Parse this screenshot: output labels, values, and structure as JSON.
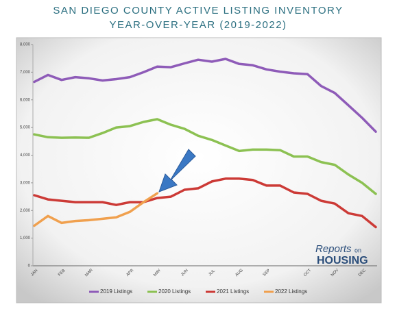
{
  "chart_data": {
    "type": "line",
    "title": "SAN DIEGO COUNTY ACTIVE LISTING INVENTORY",
    "subtitle": "YEAR-OVER-YEAR (2019-2022)",
    "categories": [
      "JAN",
      null,
      "FEB",
      null,
      "MAR",
      null,
      null,
      "APR",
      null,
      "MAY",
      null,
      "JUN",
      null,
      "JUL",
      null,
      "AUG",
      null,
      "SEP",
      null,
      null,
      "OCT",
      null,
      "NOV",
      null,
      "DEC",
      null
    ],
    "series": [
      {
        "name": "2019 Listings",
        "color": "#8e5bb8",
        "values": [
          6650,
          6900,
          6720,
          6820,
          6780,
          6700,
          6750,
          6820,
          7000,
          7200,
          7180,
          7320,
          7450,
          7380,
          7480,
          7300,
          7250,
          7100,
          7020,
          6960,
          6930,
          6500,
          6250,
          5800,
          5350,
          4850
        ]
      },
      {
        "name": "2020 Listings",
        "color": "#8cc152",
        "values": [
          4750,
          4650,
          4630,
          4640,
          4630,
          4800,
          5000,
          5050,
          5200,
          5300,
          5100,
          4950,
          4700,
          4550,
          4350,
          4150,
          4200,
          4200,
          4180,
          3950,
          3950,
          3750,
          3650,
          3300,
          3000,
          2600
        ]
      },
      {
        "name": "2021 Listings",
        "color": "#cc3a36",
        "values": [
          2550,
          2400,
          2350,
          2300,
          2300,
          2300,
          2200,
          2300,
          2300,
          2450,
          2500,
          2750,
          2800,
          3050,
          3150,
          3150,
          3100,
          2900,
          2900,
          2650,
          2600,
          2350,
          2250,
          1900,
          1800,
          1400
        ]
      },
      {
        "name": "2022 Listings",
        "color": "#f0a04e",
        "values": [
          1450,
          1800,
          1550,
          1620,
          1650,
          1700,
          1750,
          1950,
          2300,
          2620,
          null,
          null,
          null,
          null,
          null,
          null,
          null,
          null,
          null,
          null,
          null,
          null,
          null,
          null,
          null,
          null
        ]
      }
    ],
    "ylim": [
      0,
      8000
    ],
    "yticks": [
      0,
      {
        "value": 1000,
        "label": "1,000"
      },
      {
        "value": 2000,
        "label": "2,000"
      },
      {
        "value": 3000,
        "label": "3,000"
      },
      {
        "value": 4000,
        "label": "4,000"
      },
      {
        "value": 5000,
        "label": "5,000"
      },
      {
        "value": 6000,
        "label": "6,000"
      },
      {
        "value": 7000,
        "label": "7,000"
      },
      {
        "value": 8000,
        "label": "8,000"
      }
    ],
    "grid": false,
    "legend": "bottom",
    "logo": {
      "brand": "Reports",
      "small": "on",
      "name": "HOUSING"
    }
  }
}
